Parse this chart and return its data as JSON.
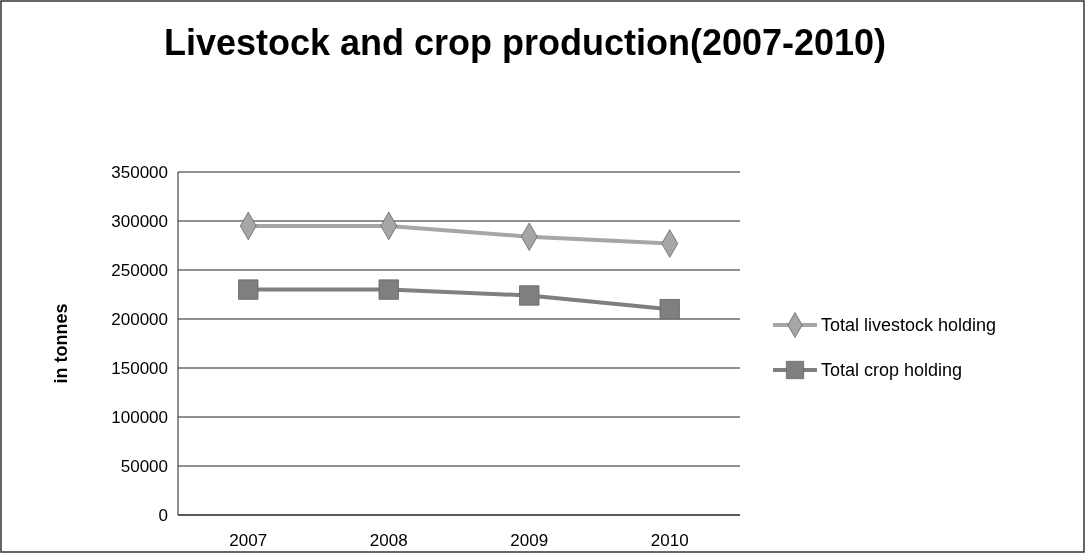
{
  "chart_data": {
    "type": "line",
    "title": "Livestock and crop production(2007-2010)",
    "ylabel": "in tonnes",
    "categories": [
      "2007",
      "2008",
      "2009",
      "2010"
    ],
    "series": [
      {
        "name": "Total livestock holding",
        "color": "#a6a6a6",
        "marker": "diamond",
        "values": [
          295000,
          295000,
          284000,
          277000
        ]
      },
      {
        "name": "Total crop holding",
        "color": "#7f7f7f",
        "marker": "square",
        "values": [
          230000,
          230000,
          224000,
          210000
        ]
      }
    ],
    "ylim": [
      0,
      350000
    ],
    "yticks": [
      0,
      50000,
      100000,
      150000,
      200000,
      250000,
      300000,
      350000
    ],
    "grid": "y",
    "legend": "right"
  }
}
